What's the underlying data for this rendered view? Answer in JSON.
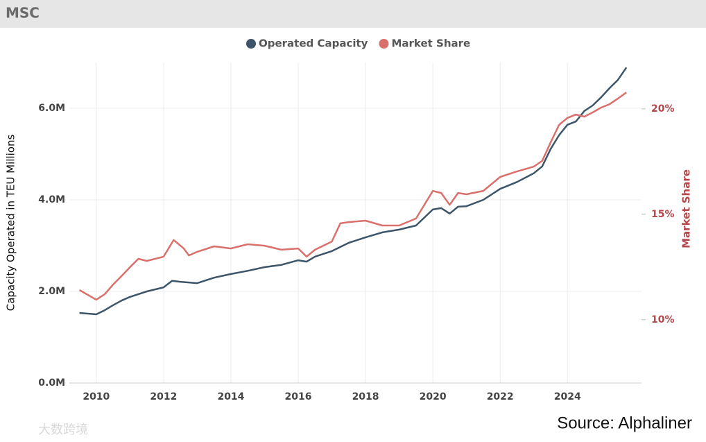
{
  "header": "MSC",
  "chart_data": {
    "type": "line",
    "xlabel": null,
    "ylabel": "Capacity Operated in TEU Millions",
    "y2label": "Market Share",
    "xlim": [
      2009.2,
      2026.2
    ],
    "xticks": [
      2010,
      2012,
      2014,
      2016,
      2018,
      2020,
      2022,
      2024
    ],
    "ylim": [
      0,
      7
    ],
    "yticks": [
      {
        "value": 0,
        "label": "0.0M"
      },
      {
        "value": 2,
        "label": "2.0M"
      },
      {
        "value": 4,
        "label": "4.0M"
      },
      {
        "value": 6,
        "label": "6.0M"
      }
    ],
    "y2lim": [
      7,
      22.2
    ],
    "y2ticks": [
      {
        "value": 10,
        "label": "10%"
      },
      {
        "value": 15,
        "label": "15%"
      },
      {
        "value": 20,
        "label": "20%"
      }
    ],
    "grid": true,
    "legend": "top",
    "series": [
      {
        "name": "Operated Capacity",
        "color": "#3d5568",
        "x": [
          2009.5,
          2010.0,
          2010.25,
          2010.5,
          2010.75,
          2011.0,
          2011.5,
          2012.0,
          2012.25,
          2012.5,
          2013.0,
          2013.5,
          2014.0,
          2014.5,
          2015.0,
          2015.5,
          2016.0,
          2016.25,
          2016.5,
          2017.0,
          2017.5,
          2018.0,
          2018.5,
          2019.0,
          2019.5,
          2020.0,
          2020.25,
          2020.5,
          2020.75,
          2021.0,
          2021.5,
          2022.0,
          2022.5,
          2023.0,
          2023.25,
          2023.5,
          2023.75,
          2024.0,
          2024.25,
          2024.5,
          2024.75,
          2025.0,
          2025.25,
          2025.5,
          2025.75
        ],
        "values": [
          1.53,
          1.5,
          1.59,
          1.7,
          1.8,
          1.88,
          2.0,
          2.09,
          2.23,
          2.21,
          2.18,
          2.3,
          2.38,
          2.45,
          2.53,
          2.58,
          2.68,
          2.65,
          2.76,
          2.88,
          3.06,
          3.18,
          3.29,
          3.35,
          3.44,
          3.79,
          3.82,
          3.7,
          3.85,
          3.86,
          4.0,
          4.24,
          4.39,
          4.58,
          4.73,
          5.11,
          5.41,
          5.64,
          5.71,
          5.94,
          6.06,
          6.24,
          6.44,
          6.62,
          6.89
        ]
      },
      {
        "name": "Market Share",
        "color": "#d9706b",
        "axis": "y2",
        "x": [
          2009.5,
          2009.75,
          2010.0,
          2010.25,
          2010.5,
          2010.75,
          2011.0,
          2011.25,
          2011.5,
          2012.0,
          2012.3,
          2012.6,
          2012.75,
          2013.0,
          2013.5,
          2014.0,
          2014.5,
          2015.0,
          2015.5,
          2016.0,
          2016.25,
          2016.5,
          2017.0,
          2017.25,
          2017.5,
          2018.0,
          2018.5,
          2019.0,
          2019.5,
          2020.0,
          2020.25,
          2020.5,
          2020.75,
          2021.0,
          2021.5,
          2022.0,
          2022.5,
          2023.0,
          2023.25,
          2023.5,
          2023.75,
          2024.0,
          2024.25,
          2024.5,
          2024.75,
          2025.0,
          2025.25,
          2025.5,
          2025.75
        ],
        "values": [
          11.41,
          11.18,
          10.95,
          11.21,
          11.67,
          12.07,
          12.49,
          12.89,
          12.79,
          12.99,
          13.78,
          13.38,
          13.05,
          13.22,
          13.48,
          13.38,
          13.58,
          13.51,
          13.32,
          13.38,
          12.99,
          13.32,
          13.71,
          14.57,
          14.63,
          14.7,
          14.47,
          14.47,
          14.8,
          16.11,
          16.01,
          15.45,
          16.01,
          15.95,
          16.11,
          16.77,
          17.03,
          17.26,
          17.53,
          18.41,
          19.24,
          19.57,
          19.73,
          19.63,
          19.83,
          20.06,
          20.22,
          20.49,
          20.78
        ]
      }
    ]
  },
  "source": "Source: Alphaliner",
  "watermark": "大数跨境"
}
